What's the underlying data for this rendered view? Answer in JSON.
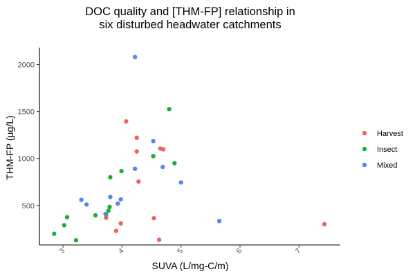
{
  "chart_data": {
    "type": "scatter",
    "title_lines": [
      "DOC quality and [THM-FP] relationship in",
      "six disturbed headwater catchments"
    ],
    "xlabel": "SUVA (L/mg-C/m)",
    "ylabel": "THM-FP (µg/L)",
    "xlim": [
      2.6,
      7.7
    ],
    "ylim": [
      80,
      2180
    ],
    "x_ticks": [
      "3",
      "4",
      "5",
      "6",
      "7"
    ],
    "y_ticks": [
      "500",
      "1000",
      "1500",
      "2000"
    ],
    "grid": false,
    "legend_position": "right",
    "series": [
      {
        "name": "Harvest",
        "color": "#F0625E",
        "points": [
          [
            3.73,
            370
          ],
          [
            3.9,
            230
          ],
          [
            3.98,
            310
          ],
          [
            4.07,
            1395
          ],
          [
            4.25,
            1220
          ],
          [
            4.25,
            1075
          ],
          [
            4.28,
            755
          ],
          [
            4.54,
            365
          ],
          [
            4.63,
            135
          ],
          [
            4.65,
            1105
          ],
          [
            4.7,
            1098
          ],
          [
            7.43,
            300
          ]
        ]
      },
      {
        "name": "Insect",
        "color": "#1FAE3C",
        "points": [
          [
            2.85,
            200
          ],
          [
            3.02,
            290
          ],
          [
            3.07,
            375
          ],
          [
            3.22,
            130
          ],
          [
            3.55,
            395
          ],
          [
            3.73,
            405
          ],
          [
            3.77,
            445
          ],
          [
            3.79,
            485
          ],
          [
            3.8,
            800
          ],
          [
            3.99,
            865
          ],
          [
            4.53,
            1025
          ],
          [
            4.8,
            1525
          ],
          [
            4.89,
            950
          ]
        ]
      },
      {
        "name": "Mixed",
        "color": "#5189F0",
        "points": [
          [
            3.31,
            560
          ],
          [
            3.4,
            510
          ],
          [
            3.72,
            410
          ],
          [
            3.8,
            590
          ],
          [
            3.93,
            520
          ],
          [
            3.98,
            565
          ],
          [
            4.22,
            890
          ],
          [
            4.22,
            2080
          ],
          [
            4.53,
            1185
          ],
          [
            4.69,
            910
          ],
          [
            5.0,
            745
          ],
          [
            5.65,
            335
          ]
        ]
      }
    ]
  }
}
